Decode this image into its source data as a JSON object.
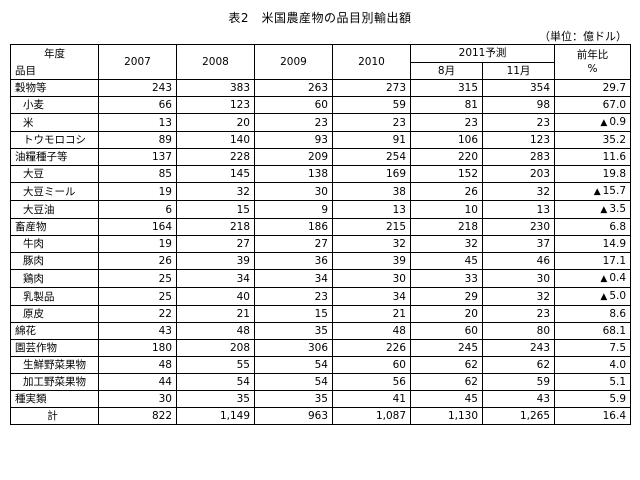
{
  "title": "表2　米国農産物の品目別輸出額",
  "unit": "（単位：億ドル）",
  "header": {
    "year": "年度",
    "item": "品目",
    "years": [
      "2007",
      "2008",
      "2009",
      "2010"
    ],
    "forecast": "2011予測",
    "forecast_months": [
      "8月",
      "11月"
    ],
    "yoy": "前年比",
    "yoy_unit": "%"
  },
  "chart_data": {
    "type": "table",
    "title": "表2　米国農産物の品目別輸出額",
    "columns": [
      "2007",
      "2008",
      "2009",
      "2010",
      "2011予測 8月",
      "2011予測 11月",
      "前年比 %"
    ],
    "rows": [
      {
        "label": "穀物等",
        "level": 0,
        "values": [
          "243",
          "383",
          "263",
          "273",
          "315",
          "354"
        ],
        "yoy": "29.7",
        "neg": false
      },
      {
        "label": "小麦",
        "level": 1,
        "values": [
          "66",
          "123",
          "60",
          "59",
          "81",
          "98"
        ],
        "yoy": "67.0",
        "neg": false
      },
      {
        "label": "米",
        "level": 1,
        "values": [
          "13",
          "20",
          "23",
          "23",
          "23",
          "23"
        ],
        "yoy": "0.9",
        "neg": true
      },
      {
        "label": "トウモロコシ",
        "level": 1,
        "values": [
          "89",
          "140",
          "93",
          "91",
          "106",
          "123"
        ],
        "yoy": "35.2",
        "neg": false
      },
      {
        "label": "油糧種子等",
        "level": 0,
        "values": [
          "137",
          "228",
          "209",
          "254",
          "220",
          "283"
        ],
        "yoy": "11.6",
        "neg": false
      },
      {
        "label": "大豆",
        "level": 1,
        "values": [
          "85",
          "145",
          "138",
          "169",
          "152",
          "203"
        ],
        "yoy": "19.8",
        "neg": false
      },
      {
        "label": "大豆ミール",
        "level": 1,
        "values": [
          "19",
          "32",
          "30",
          "38",
          "26",
          "32"
        ],
        "yoy": "15.7",
        "neg": true
      },
      {
        "label": "大豆油",
        "level": 1,
        "values": [
          "6",
          "15",
          "9",
          "13",
          "10",
          "13"
        ],
        "yoy": "3.5",
        "neg": true
      },
      {
        "label": "畜産物",
        "level": 0,
        "values": [
          "164",
          "218",
          "186",
          "215",
          "218",
          "230"
        ],
        "yoy": "6.8",
        "neg": false
      },
      {
        "label": "牛肉",
        "level": 1,
        "values": [
          "19",
          "27",
          "27",
          "32",
          "32",
          "37"
        ],
        "yoy": "14.9",
        "neg": false
      },
      {
        "label": "豚肉",
        "level": 1,
        "values": [
          "26",
          "39",
          "36",
          "39",
          "45",
          "46"
        ],
        "yoy": "17.1",
        "neg": false
      },
      {
        "label": "鶏肉",
        "level": 1,
        "values": [
          "25",
          "34",
          "34",
          "30",
          "33",
          "30"
        ],
        "yoy": "0.4",
        "neg": true
      },
      {
        "label": "乳製品",
        "level": 1,
        "values": [
          "25",
          "40",
          "23",
          "34",
          "29",
          "32"
        ],
        "yoy": "5.0",
        "neg": true
      },
      {
        "label": "原皮",
        "level": 1,
        "values": [
          "22",
          "21",
          "15",
          "21",
          "20",
          "23"
        ],
        "yoy": "8.6",
        "neg": false
      },
      {
        "label": "綿花",
        "level": 0,
        "values": [
          "43",
          "48",
          "35",
          "48",
          "60",
          "80"
        ],
        "yoy": "68.1",
        "neg": false
      },
      {
        "label": "園芸作物",
        "level": 0,
        "values": [
          "180",
          "208",
          "306",
          "226",
          "245",
          "243"
        ],
        "yoy": "7.5",
        "neg": false
      },
      {
        "label": "生鮮野菜果物",
        "level": 1,
        "values": [
          "48",
          "55",
          "54",
          "60",
          "62",
          "62"
        ],
        "yoy": "4.0",
        "neg": false
      },
      {
        "label": "加工野菜果物",
        "level": 1,
        "values": [
          "44",
          "54",
          "54",
          "56",
          "62",
          "59"
        ],
        "yoy": "5.1",
        "neg": false
      },
      {
        "label": "種実類",
        "level": 0,
        "values": [
          "30",
          "35",
          "35",
          "41",
          "45",
          "43"
        ],
        "yoy": "5.9",
        "neg": false
      },
      {
        "label": "計",
        "level": 2,
        "values": [
          "822",
          "1,149",
          "963",
          "1,087",
          "1,130",
          "1,265"
        ],
        "yoy": "16.4",
        "neg": false
      }
    ],
    "negative_marker": "▲"
  }
}
